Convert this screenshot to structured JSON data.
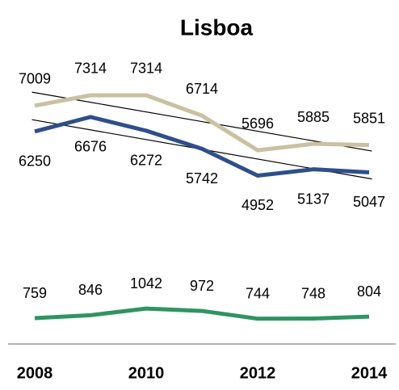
{
  "chart_data": {
    "type": "line",
    "title": "Lisboa",
    "x": [
      2008,
      2009,
      2010,
      2011,
      2012,
      2013,
      2014
    ],
    "xlim": [
      2008,
      2014
    ],
    "xticks": [
      2008,
      2010,
      2012,
      2014
    ],
    "ylim": [
      0,
      9000
    ],
    "series": [
      {
        "color": "#c9c1a1",
        "values": [
          7009,
          7314,
          7314,
          6714,
          5696,
          5885,
          5851
        ],
        "trendline": true
      },
      {
        "color": "#2f4f8a",
        "values": [
          6250,
          6676,
          6272,
          5742,
          4952,
          5137,
          5047
        ],
        "trendline": true
      },
      {
        "color": "#2f9461",
        "values": [
          759,
          846,
          1042,
          972,
          744,
          748,
          804
        ]
      }
    ]
  }
}
